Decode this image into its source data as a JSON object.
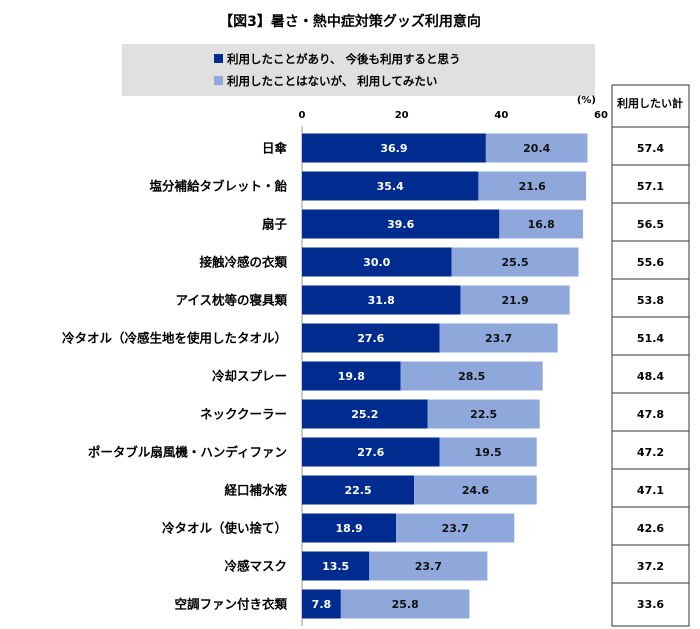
{
  "chart_data": {
    "type": "bar",
    "orientation": "horizontal",
    "stacked": true,
    "title": "【図3】暑さ・熱中症対策グッズ利用意向",
    "unit_label": "(%)",
    "xlim": [
      0,
      60
    ],
    "x_ticks": [
      "0",
      "20",
      "40",
      "60"
    ],
    "grid": false,
    "legend_position": "top",
    "colors": {
      "series1": "#002b8f",
      "series2": "#8fa8dc",
      "legend_bg": "#e0e0e0"
    },
    "categories": [
      "日傘",
      "塩分補給タブレット・飴",
      "扇子",
      "接触冷感の衣類",
      "アイス枕等の寝具類",
      "冷タオル（冷感生地を使用したタオル）",
      "冷却スプレー",
      "ネッククーラー",
      "ポータブル扇風機・ハンディファン",
      "経口補水液",
      "冷タオル（使い捨て）",
      "冷感マスク",
      "空調ファン付き衣類"
    ],
    "series": [
      {
        "name": "利用したことがあり、 今後も利用すると思う",
        "values": [
          36.9,
          35.4,
          39.6,
          30.0,
          31.8,
          27.6,
          19.8,
          25.2,
          27.6,
          22.5,
          18.9,
          13.5,
          7.8
        ]
      },
      {
        "name": "利用したことはないが、 利用してみたい",
        "values": [
          20.4,
          21.6,
          16.8,
          25.5,
          21.9,
          23.7,
          28.5,
          22.5,
          19.5,
          24.6,
          23.7,
          23.7,
          25.8
        ]
      }
    ],
    "total_header": "利用したい計",
    "totals": [
      "57.4",
      "57.1",
      "56.5",
      "55.6",
      "53.8",
      "51.4",
      "48.4",
      "47.8",
      "47.2",
      "47.1",
      "42.6",
      "37.2",
      "33.6"
    ]
  }
}
